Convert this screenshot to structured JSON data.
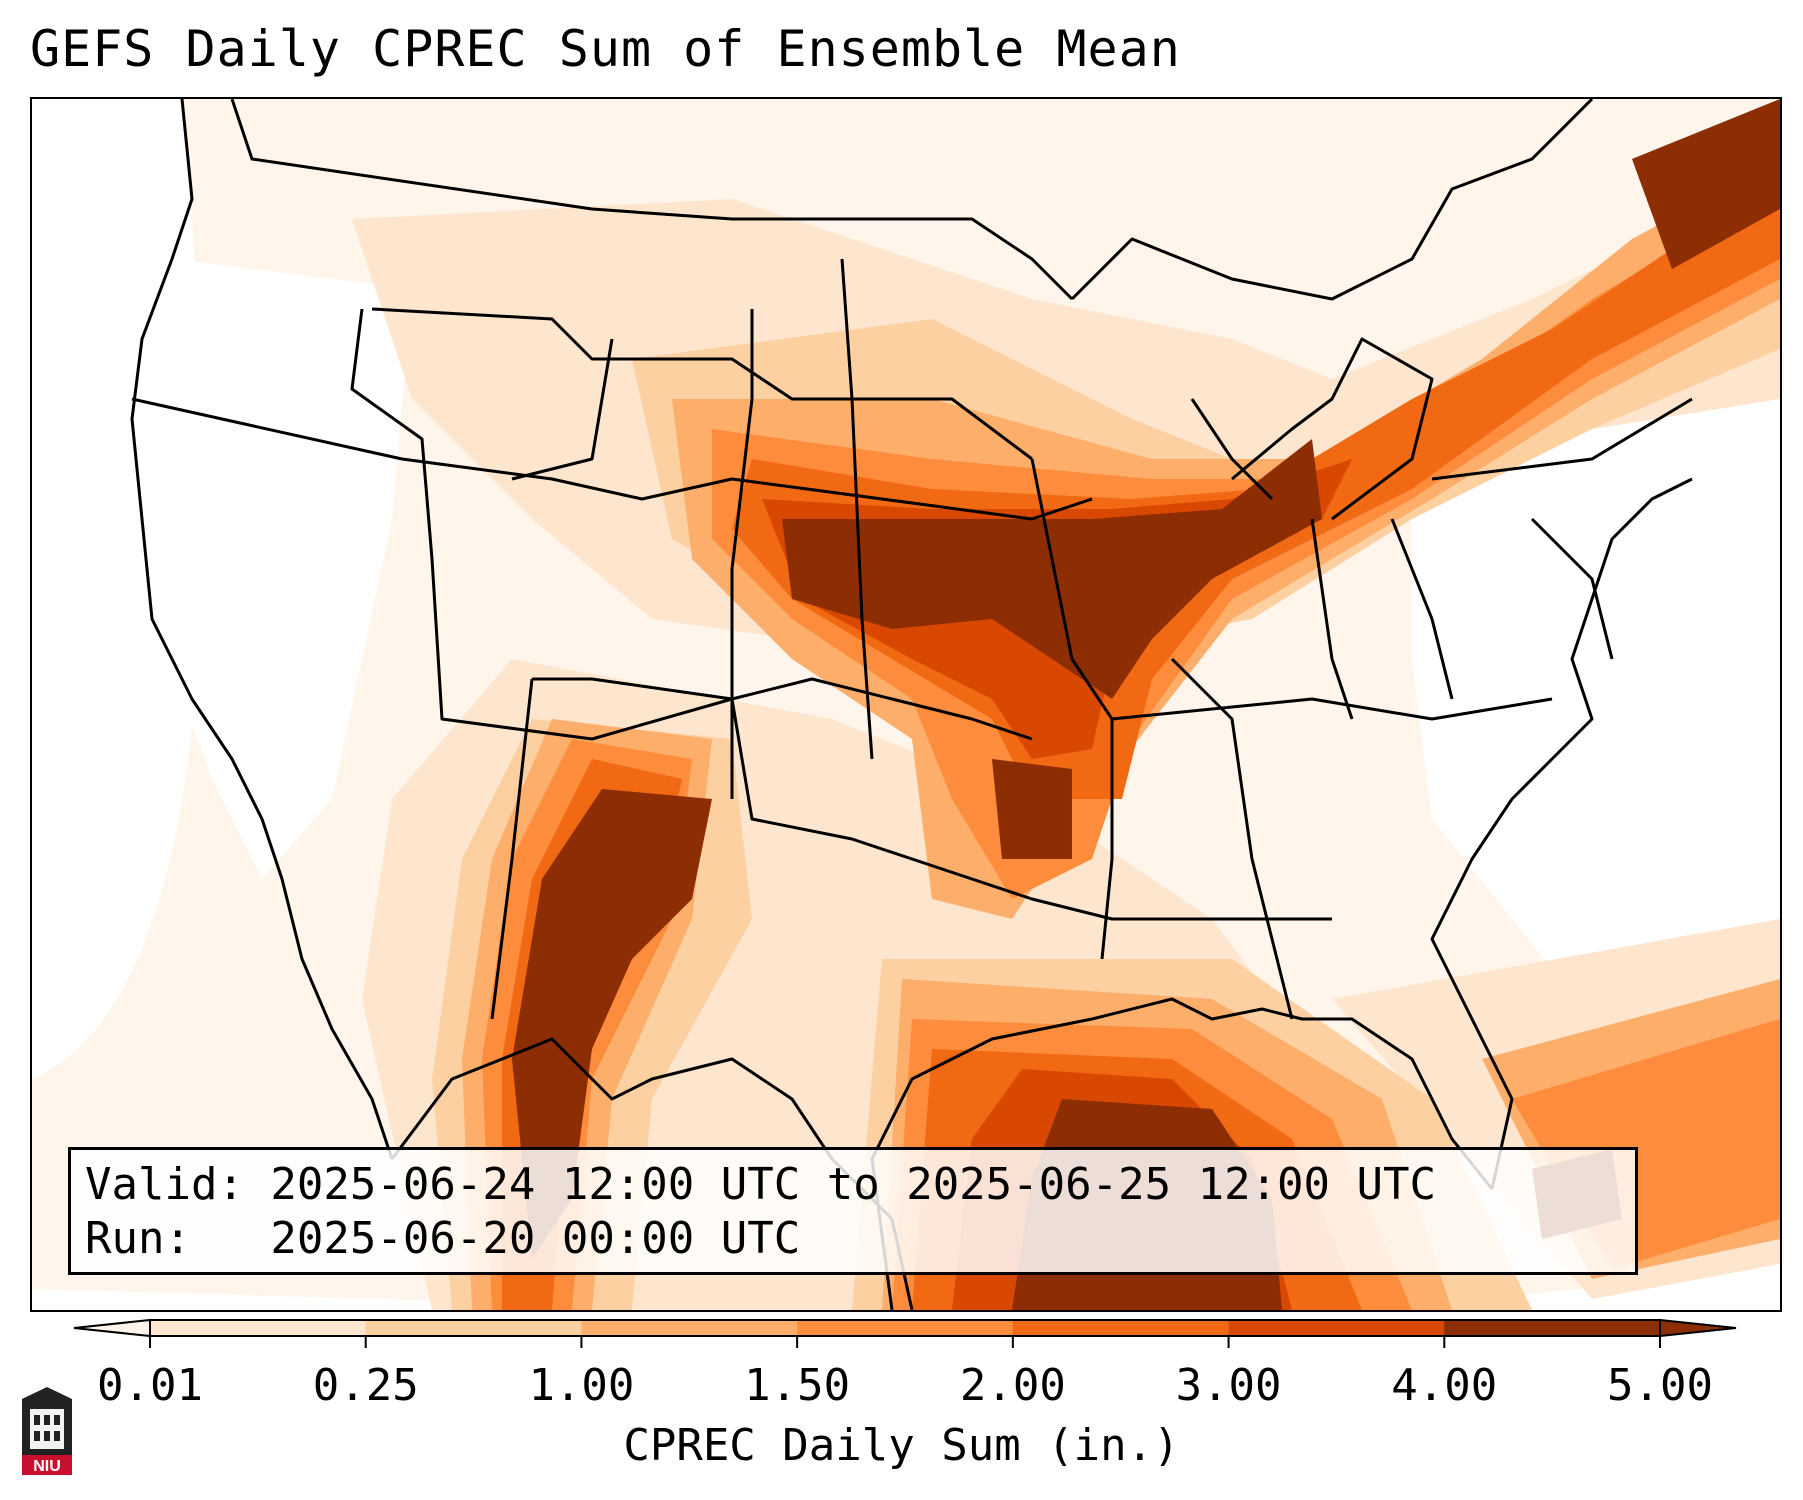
{
  "title": "GEFS Daily CPREC Sum of Ensemble Mean",
  "info_box": {
    "valid_line": "Valid: 2025-06-24 12:00 UTC to 2025-06-25 12:00 UTC",
    "run_line": "Run:   2025-06-20 00:00 UTC"
  },
  "colorbar": {
    "label": "CPREC Daily Sum (in.)",
    "ticks": [
      "0.01",
      "0.25",
      "1.00",
      "1.50",
      "2.00",
      "3.00",
      "4.00",
      "5.00"
    ],
    "colors": [
      "#fff5eb",
      "#fee6ce",
      "#fdd0a2",
      "#fdae6b",
      "#fd8d3c",
      "#f16913",
      "#d94801",
      "#8c2d04"
    ],
    "extend": "both"
  },
  "logo": {
    "text": "NIU",
    "icon": "niu-tower-icon",
    "color": "#c8102e"
  },
  "map": {
    "region": "Continental United States, Gulf of Mexico and adjacent areas",
    "background_color": "#ffffff",
    "boundary_color": "#000000"
  }
}
